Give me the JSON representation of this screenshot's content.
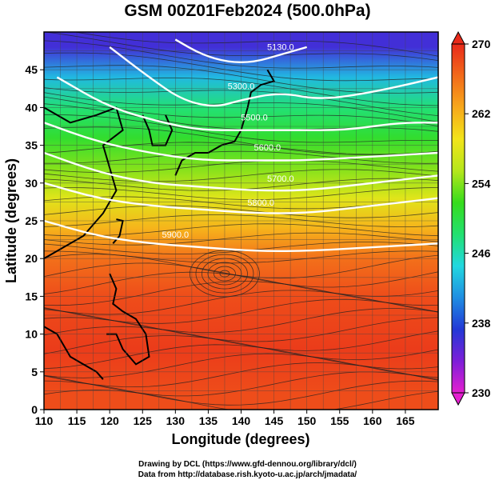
{
  "chart_data": {
    "type": "heatmap",
    "title": "GSM 00Z01Feb2024 (500.0hPa)",
    "xlabel": "Longitude (degrees)",
    "ylabel": "Latitude  (degrees)",
    "xlim": [
      110,
      170
    ],
    "ylim": [
      0,
      50
    ],
    "xticks": [
      110,
      115,
      120,
      125,
      130,
      135,
      140,
      145,
      150,
      155,
      160,
      165
    ],
    "yticks": [
      0,
      5,
      10,
      15,
      20,
      25,
      30,
      35,
      40,
      45
    ],
    "grid": true,
    "colorbar": {
      "min": 230,
      "max": 270,
      "ticks": [
        230,
        238,
        246,
        254,
        262,
        270
      ],
      "colors": [
        "#e41fd0",
        "#7d1fd8",
        "#2238d6",
        "#1f8ee2",
        "#22d8e0",
        "#22e070",
        "#36dc1c",
        "#b5e61b",
        "#f2e41a",
        "#f7a81b",
        "#f26a1a",
        "#e92a1a"
      ],
      "placement": "right"
    },
    "temperature_bands": [
      {
        "lat": 48,
        "value": 236
      },
      {
        "lat": 44,
        "value": 243
      },
      {
        "lat": 40,
        "value": 248
      },
      {
        "lat": 36,
        "value": 251
      },
      {
        "lat": 32,
        "value": 254
      },
      {
        "lat": 28,
        "value": 258
      },
      {
        "lat": 24,
        "value": 262
      },
      {
        "lat": 20,
        "value": 266
      },
      {
        "lat": 15,
        "value": 268
      },
      {
        "lat": 8,
        "value": 269
      },
      {
        "lat": 2,
        "value": 268
      }
    ],
    "contours": [
      {
        "label": "5130.0",
        "points": [
          [
            130,
            49
          ],
          [
            134,
            47
          ],
          [
            138,
            46
          ],
          [
            142,
            46
          ],
          [
            146,
            47
          ],
          [
            150,
            48
          ]
        ],
        "label_at": [
          146,
          47.6
        ]
      },
      {
        "label": "5300.0",
        "points": [
          [
            120,
            48
          ],
          [
            126,
            44
          ],
          [
            131,
            41
          ],
          [
            136,
            40
          ],
          [
            140,
            41
          ],
          [
            146,
            42
          ],
          [
            152,
            41
          ],
          [
            160,
            42
          ],
          [
            170,
            44
          ]
        ],
        "label_at": [
          140,
          42.4
        ]
      },
      {
        "label": "5500.0",
        "points": [
          [
            112,
            44
          ],
          [
            120,
            40
          ],
          [
            128,
            38
          ],
          [
            134,
            37
          ],
          [
            140,
            37
          ],
          [
            148,
            37
          ],
          [
            156,
            37
          ],
          [
            164,
            38
          ],
          [
            170,
            38
          ]
        ],
        "label_at": [
          142,
          38.3
        ]
      },
      {
        "label": "5600.0",
        "points": [
          [
            110,
            38
          ],
          [
            118,
            35.5
          ],
          [
            126,
            34
          ],
          [
            134,
            33
          ],
          [
            142,
            33
          ],
          [
            150,
            33
          ],
          [
            160,
            33.5
          ],
          [
            170,
            34
          ]
        ],
        "label_at": [
          144,
          34.3
        ]
      },
      {
        "label": "5700.0",
        "points": [
          [
            110,
            34
          ],
          [
            118,
            31.5
          ],
          [
            126,
            30
          ],
          [
            134,
            29.5
          ],
          [
            142,
            29
          ],
          [
            150,
            29
          ],
          [
            160,
            30
          ],
          [
            170,
            31
          ]
        ],
        "label_at": [
          146,
          30.2
        ]
      },
      {
        "label": "5800.0",
        "points": [
          [
            110,
            30
          ],
          [
            118,
            28
          ],
          [
            126,
            27
          ],
          [
            134,
            26.5
          ],
          [
            142,
            26
          ],
          [
            150,
            26
          ],
          [
            160,
            27
          ],
          [
            170,
            28
          ]
        ],
        "label_at": [
          143,
          27
        ]
      },
      {
        "label": "5900.0",
        "points": [
          [
            110,
            25
          ],
          [
            118,
            23
          ],
          [
            126,
            22
          ],
          [
            134,
            21.5
          ],
          [
            142,
            21
          ],
          [
            150,
            21
          ],
          [
            160,
            21.5
          ],
          [
            170,
            22
          ]
        ],
        "label_at": [
          130,
          22.8
        ]
      }
    ]
  },
  "credits": {
    "line1": "Drawing by DCL (https://www.gfd-dennou.org/library/dcl/)",
    "line2": "Data from http://database.rish.kyoto-u.ac.jp/arch/jmadata/"
  }
}
